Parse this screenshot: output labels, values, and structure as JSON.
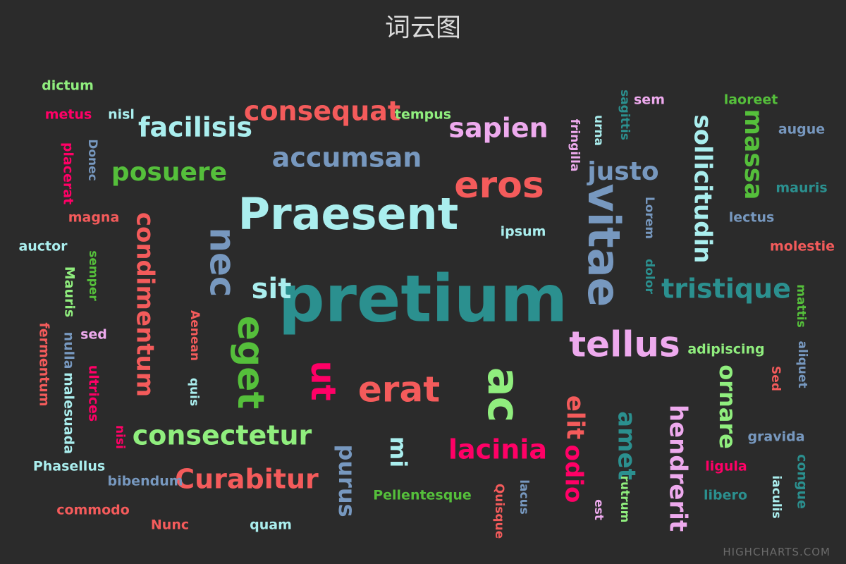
{
  "chart_data": {
    "type": "wordcloud",
    "title": "词云图",
    "credit": "HIGHCHARTS.COM",
    "words": [
      {
        "text": "pretium",
        "weight": 12,
        "color": "#2b908f",
        "rotation": 0
      },
      {
        "text": "Praesent",
        "weight": 6,
        "color": "#aaeeee",
        "rotation": 0
      },
      {
        "text": "vitae",
        "weight": 6,
        "color": "#7798BF",
        "rotation": 90
      },
      {
        "text": "ac",
        "weight": 6,
        "color": "#90ee7e",
        "rotation": 90
      },
      {
        "text": "eget",
        "weight": 5,
        "color": "#55BF3B",
        "rotation": 90
      },
      {
        "text": "eros",
        "weight": 5,
        "color": "#f45b5b",
        "rotation": 0
      },
      {
        "text": "tellus",
        "weight": 5,
        "color": "#eeaaee",
        "rotation": 0
      },
      {
        "text": "nec",
        "weight": 5,
        "color": "#7798BF",
        "rotation": 90
      },
      {
        "text": "erat",
        "weight": 5,
        "color": "#f45b5b",
        "rotation": 0
      },
      {
        "text": "ut",
        "weight": 5,
        "color": "#ff0066",
        "rotation": 90
      },
      {
        "text": "sit",
        "weight": 4,
        "color": "#aaeeee",
        "rotation": 0
      },
      {
        "text": "condimentum",
        "weight": 4,
        "color": "#f45b5b",
        "rotation": 90
      },
      {
        "text": "consequat",
        "weight": 4,
        "color": "#f45b5b",
        "rotation": 0
      },
      {
        "text": "sollicitudin",
        "weight": 4,
        "color": "#aaeeee",
        "rotation": 90
      },
      {
        "text": "tristique",
        "weight": 4,
        "color": "#2b908f",
        "rotation": 0
      },
      {
        "text": "hendrerit",
        "weight": 4,
        "color": "#eeaaee",
        "rotation": 90
      },
      {
        "text": "ornare",
        "weight": 4,
        "color": "#90ee7e",
        "rotation": 90
      },
      {
        "text": "massa",
        "weight": 4,
        "color": "#55BF3B",
        "rotation": 90
      },
      {
        "text": "justo",
        "weight": 4,
        "color": "#7798BF",
        "rotation": 0
      },
      {
        "text": "lacinia",
        "weight": 4,
        "color": "#ff0066",
        "rotation": 0
      },
      {
        "text": "Curabitur",
        "weight": 4,
        "color": "#f45b5b",
        "rotation": 0
      },
      {
        "text": "consectetur",
        "weight": 4,
        "color": "#90ee7e",
        "rotation": 0
      },
      {
        "text": "facilisis",
        "weight": 4,
        "color": "#aaeeee",
        "rotation": 0
      },
      {
        "text": "posuere",
        "weight": 4,
        "color": "#55BF3B",
        "rotation": 0
      },
      {
        "text": "accumsan",
        "weight": 4,
        "color": "#7798BF",
        "rotation": 0
      },
      {
        "text": "sapien",
        "weight": 4,
        "color": "#eeaaee",
        "rotation": 0
      },
      {
        "text": "elit",
        "weight": 4,
        "color": "#f45b5b",
        "rotation": 90
      },
      {
        "text": "odio",
        "weight": 4,
        "color": "#ff0066",
        "rotation": 90
      },
      {
        "text": "amet",
        "weight": 4,
        "color": "#2b908f",
        "rotation": 90
      },
      {
        "text": "purus",
        "weight": 4,
        "color": "#7798BF",
        "rotation": 90
      },
      {
        "text": "mi",
        "weight": 4,
        "color": "#aaeeee",
        "rotation": 90
      },
      {
        "text": "dictum",
        "weight": 1,
        "color": "#90ee7e",
        "rotation": 0
      },
      {
        "text": "metus",
        "weight": 1,
        "color": "#ff0066",
        "rotation": 0
      },
      {
        "text": "nisl",
        "weight": 1,
        "color": "#aaeeee",
        "rotation": 0
      },
      {
        "text": "tempus",
        "weight": 1,
        "color": "#90ee7e",
        "rotation": 0
      },
      {
        "text": "Donec",
        "weight": 1,
        "color": "#7798BF",
        "rotation": 90
      },
      {
        "text": "placerat",
        "weight": 1,
        "color": "#ff0066",
        "rotation": 90
      },
      {
        "text": "magna",
        "weight": 1,
        "color": "#f45b5b",
        "rotation": 0
      },
      {
        "text": "auctor",
        "weight": 1,
        "color": "#aaeeee",
        "rotation": 0
      },
      {
        "text": "semper",
        "weight": 1,
        "color": "#55BF3B",
        "rotation": 90
      },
      {
        "text": "Mauris",
        "weight": 1,
        "color": "#90ee7e",
        "rotation": 90
      },
      {
        "text": "fermentum",
        "weight": 1,
        "color": "#f45b5b",
        "rotation": 90
      },
      {
        "text": "nulla",
        "weight": 1,
        "color": "#7798BF",
        "rotation": 90
      },
      {
        "text": "sed",
        "weight": 1,
        "color": "#eeaaee",
        "rotation": 0
      },
      {
        "text": "malesuada",
        "weight": 1,
        "color": "#aaeeee",
        "rotation": 90
      },
      {
        "text": "ultrices",
        "weight": 1,
        "color": "#ff0066",
        "rotation": 90
      },
      {
        "text": "Aenean",
        "weight": 1,
        "color": "#f45b5b",
        "rotation": 90
      },
      {
        "text": "quis",
        "weight": 1,
        "color": "#aaeeee",
        "rotation": 90
      },
      {
        "text": "nisi",
        "weight": 1,
        "color": "#ff0066",
        "rotation": 90
      },
      {
        "text": "Phasellus",
        "weight": 1,
        "color": "#aaeeee",
        "rotation": 0
      },
      {
        "text": "bibendum",
        "weight": 1,
        "color": "#7798BF",
        "rotation": 0
      },
      {
        "text": "commodo",
        "weight": 1,
        "color": "#f45b5b",
        "rotation": 0
      },
      {
        "text": "Nunc",
        "weight": 1,
        "color": "#f45b5b",
        "rotation": 0
      },
      {
        "text": "quam",
        "weight": 1,
        "color": "#aaeeee",
        "rotation": 0
      },
      {
        "text": "Pellentesque",
        "weight": 1,
        "color": "#55BF3B",
        "rotation": 0
      },
      {
        "text": "Quisque",
        "weight": 1,
        "color": "#f45b5b",
        "rotation": 90
      },
      {
        "text": "lacus",
        "weight": 1,
        "color": "#7798BF",
        "rotation": 90
      },
      {
        "text": "est",
        "weight": 1,
        "color": "#eeaaee",
        "rotation": 90
      },
      {
        "text": "rutrum",
        "weight": 1,
        "color": "#90ee7e",
        "rotation": 90
      },
      {
        "text": "ipsum",
        "weight": 1,
        "color": "#aaeeee",
        "rotation": 0
      },
      {
        "text": "fringilla",
        "weight": 1,
        "color": "#eeaaee",
        "rotation": 90
      },
      {
        "text": "urna",
        "weight": 1,
        "color": "#aaeeee",
        "rotation": 90
      },
      {
        "text": "sagittis",
        "weight": 1,
        "color": "#2b908f",
        "rotation": 90
      },
      {
        "text": "sem",
        "weight": 1,
        "color": "#eeaaee",
        "rotation": 0
      },
      {
        "text": "laoreet",
        "weight": 1,
        "color": "#55BF3B",
        "rotation": 0
      },
      {
        "text": "augue",
        "weight": 1,
        "color": "#7798BF",
        "rotation": 0
      },
      {
        "text": "mauris",
        "weight": 1,
        "color": "#2b908f",
        "rotation": 0
      },
      {
        "text": "lectus",
        "weight": 1,
        "color": "#7798BF",
        "rotation": 0
      },
      {
        "text": "molestie",
        "weight": 1,
        "color": "#f45b5b",
        "rotation": 0
      },
      {
        "text": "Lorem",
        "weight": 1,
        "color": "#7798BF",
        "rotation": 90
      },
      {
        "text": "dolor",
        "weight": 1,
        "color": "#2b908f",
        "rotation": 90
      },
      {
        "text": "mattis",
        "weight": 1,
        "color": "#55BF3B",
        "rotation": 90
      },
      {
        "text": "aliquet",
        "weight": 1,
        "color": "#7798BF",
        "rotation": 90
      },
      {
        "text": "adipiscing",
        "weight": 1,
        "color": "#90ee7e",
        "rotation": 0
      },
      {
        "text": "Sed",
        "weight": 1,
        "color": "#f45b5b",
        "rotation": 90
      },
      {
        "text": "gravida",
        "weight": 1,
        "color": "#7798BF",
        "rotation": 0
      },
      {
        "text": "congue",
        "weight": 1,
        "color": "#2b908f",
        "rotation": 90
      },
      {
        "text": "ligula",
        "weight": 1,
        "color": "#ff0066",
        "rotation": 0
      },
      {
        "text": "libero",
        "weight": 1,
        "color": "#2b908f",
        "rotation": 0
      },
      {
        "text": "iaculis",
        "weight": 1,
        "color": "#aaeeee",
        "rotation": 90
      }
    ]
  }
}
